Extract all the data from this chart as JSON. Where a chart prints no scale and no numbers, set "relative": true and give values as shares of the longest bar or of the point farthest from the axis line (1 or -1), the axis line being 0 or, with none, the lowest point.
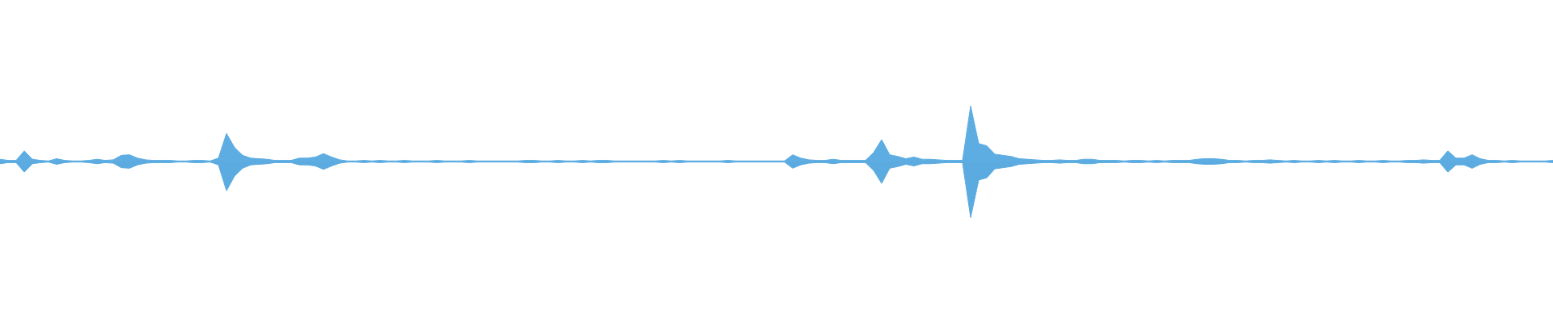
{
  "chart_data": {
    "type": "area",
    "relative": true,
    "categories": [
      null,
      null,
      null,
      null,
      null,
      null,
      null,
      null,
      null,
      null,
      null,
      null,
      null,
      null,
      null,
      null,
      null,
      null,
      null,
      null,
      null,
      null,
      null,
      null,
      null,
      null,
      null,
      null,
      null,
      null,
      null,
      null,
      null,
      null,
      null,
      null,
      null,
      null,
      null,
      null,
      null,
      null,
      null,
      null,
      null,
      null,
      null,
      null,
      null,
      null,
      null,
      null,
      null,
      null,
      null,
      null,
      null,
      null,
      null,
      null,
      null,
      null,
      null,
      null,
      null,
      null,
      null,
      null,
      null,
      null,
      null,
      null,
      null,
      null,
      null,
      null,
      null,
      null,
      null,
      null,
      null,
      null,
      null,
      null,
      null,
      null,
      null,
      null,
      null,
      null,
      null,
      null,
      null,
      null,
      null,
      null,
      null,
      null,
      null,
      null,
      null,
      null,
      null,
      null,
      null,
      null,
      null,
      null,
      null,
      null,
      null,
      null,
      null,
      null,
      null,
      null,
      null,
      null,
      null,
      null,
      null,
      null,
      null,
      null,
      null,
      null,
      null,
      null,
      null,
      null,
      null,
      null,
      null,
      null,
      null,
      null,
      null,
      null,
      null,
      null,
      null,
      null,
      null,
      null,
      null,
      null,
      null,
      null,
      null,
      null,
      null,
      null,
      null,
      null,
      null,
      null,
      null,
      null,
      null,
      null,
      null,
      null,
      null,
      null,
      null,
      null,
      null,
      null,
      null,
      null,
      null,
      null,
      null,
      null,
      null,
      null,
      null,
      null,
      null,
      null,
      null,
      null,
      null,
      null,
      null,
      null,
      null,
      null,
      null,
      null,
      null,
      null,
      null
    ],
    "series": [
      {
        "color": "#5dade2",
        "values": [
          0.04,
          0.02,
          0.02,
          0.19,
          0.04,
          0.02,
          0.01,
          0.05,
          0.02,
          0.01,
          0.01,
          0.02,
          0.04,
          0.02,
          0.03,
          0.11,
          0.12,
          0.06,
          0.03,
          0.02,
          0.02,
          0.02,
          0.01,
          0.01,
          0.02,
          0.02,
          0.01,
          0.06,
          0.5,
          0.25,
          0.11,
          0.06,
          0.05,
          0.04,
          0.02,
          0.02,
          0.02,
          0.06,
          0.06,
          0.08,
          0.14,
          0.08,
          0.03,
          0.01,
          0.01,
          0.02,
          0.01,
          0.02,
          0.01,
          0.01,
          0.02,
          0.01,
          0.01,
          0.01,
          0.02,
          0.01,
          0.01,
          0.01,
          0.02,
          0.01,
          0.01,
          0.01,
          0.01,
          0.01,
          0.01,
          0.02,
          0.02,
          0.01,
          0.01,
          0.02,
          0.01,
          0.01,
          0.02,
          0.01,
          0.02,
          0.02,
          0.01,
          0.01,
          0.01,
          0.01,
          0.01,
          0.01,
          0.02,
          0.01,
          0.02,
          0.01,
          0.01,
          0.01,
          0.01,
          0.01,
          0.02,
          0.01,
          0.01,
          0.01,
          0.01,
          0.01,
          0.01,
          0.01,
          0.12,
          0.06,
          0.03,
          0.02,
          0.02,
          0.04,
          0.02,
          0.02,
          0.02,
          0.02,
          0.16,
          0.39,
          0.12,
          0.09,
          0.05,
          0.08,
          0.04,
          0.04,
          0.03,
          0.02,
          0.02,
          0.02,
          0.99,
          0.32,
          0.28,
          0.13,
          0.11,
          0.09,
          0.05,
          0.04,
          0.03,
          0.02,
          0.02,
          0.03,
          0.02,
          0.02,
          0.04,
          0.04,
          0.02,
          0.02,
          0.02,
          0.01,
          0.02,
          0.02,
          0.01,
          0.02,
          0.01,
          0.02,
          0.02,
          0.02,
          0.04,
          0.05,
          0.05,
          0.04,
          0.02,
          0.02,
          0.01,
          0.02,
          0.02,
          0.03,
          0.02,
          0.01,
          0.02,
          0.01,
          0.01,
          0.02,
          0.01,
          0.02,
          0.01,
          0.01,
          0.02,
          0.01,
          0.01,
          0.02,
          0.01,
          0.01,
          0.02,
          0.02,
          0.03,
          0.02,
          0.02,
          0.19,
          0.06,
          0.06,
          0.12,
          0.05,
          0.02,
          0.02,
          0.01,
          0.02,
          0.01,
          0.01,
          0.01,
          0.01,
          0.02
        ]
      },
      {
        "color": "#5babe0",
        "values": [
          -0.04,
          -0.02,
          -0.02,
          -0.19,
          -0.04,
          -0.02,
          -0.01,
          -0.05,
          -0.02,
          -0.01,
          -0.01,
          -0.02,
          -0.04,
          -0.02,
          -0.03,
          -0.11,
          -0.12,
          -0.06,
          -0.03,
          -0.02,
          -0.02,
          -0.02,
          -0.01,
          -0.01,
          -0.02,
          -0.02,
          -0.01,
          -0.06,
          -0.52,
          -0.26,
          -0.12,
          -0.06,
          -0.05,
          -0.04,
          -0.02,
          -0.02,
          -0.02,
          -0.06,
          -0.06,
          -0.08,
          -0.14,
          -0.08,
          -0.03,
          -0.01,
          -0.01,
          -0.02,
          -0.01,
          -0.02,
          -0.01,
          -0.01,
          -0.02,
          -0.01,
          -0.01,
          -0.01,
          -0.02,
          -0.01,
          -0.01,
          -0.01,
          -0.02,
          -0.01,
          -0.01,
          -0.01,
          -0.01,
          -0.01,
          -0.01,
          -0.02,
          -0.02,
          -0.01,
          -0.01,
          -0.02,
          -0.01,
          -0.01,
          -0.02,
          -0.01,
          -0.02,
          -0.02,
          -0.01,
          -0.01,
          -0.01,
          -0.01,
          -0.01,
          -0.01,
          -0.02,
          -0.01,
          -0.02,
          -0.01,
          -0.01,
          -0.01,
          -0.01,
          -0.01,
          -0.02,
          -0.01,
          -0.01,
          -0.01,
          -0.01,
          -0.01,
          -0.01,
          -0.01,
          -0.12,
          -0.06,
          -0.03,
          -0.02,
          -0.02,
          -0.04,
          -0.02,
          -0.02,
          -0.02,
          -0.02,
          -0.16,
          -0.39,
          -0.12,
          -0.09,
          -0.05,
          -0.08,
          -0.04,
          -0.04,
          -0.03,
          -0.02,
          -0.02,
          -0.02,
          -1,
          -0.33,
          -0.29,
          -0.13,
          -0.11,
          -0.09,
          -0.05,
          -0.04,
          -0.03,
          -0.02,
          -0.02,
          -0.03,
          -0.02,
          -0.02,
          -0.04,
          -0.04,
          -0.02,
          -0.02,
          -0.02,
          -0.01,
          -0.02,
          -0.02,
          -0.01,
          -0.02,
          -0.01,
          -0.02,
          -0.02,
          -0.02,
          -0.04,
          -0.05,
          -0.05,
          -0.04,
          -0.02,
          -0.02,
          -0.01,
          -0.02,
          -0.02,
          -0.03,
          -0.02,
          -0.01,
          -0.02,
          -0.01,
          -0.01,
          -0.02,
          -0.01,
          -0.02,
          -0.01,
          -0.01,
          -0.02,
          -0.01,
          -0.01,
          -0.02,
          -0.01,
          -0.01,
          -0.02,
          -0.02,
          -0.03,
          -0.02,
          -0.02,
          -0.19,
          -0.06,
          -0.06,
          -0.12,
          -0.05,
          -0.02,
          -0.02,
          -0.01,
          -0.02,
          -0.01,
          -0.01,
          -0.01,
          -0.01,
          -0.02
        ]
      }
    ]
  }
}
